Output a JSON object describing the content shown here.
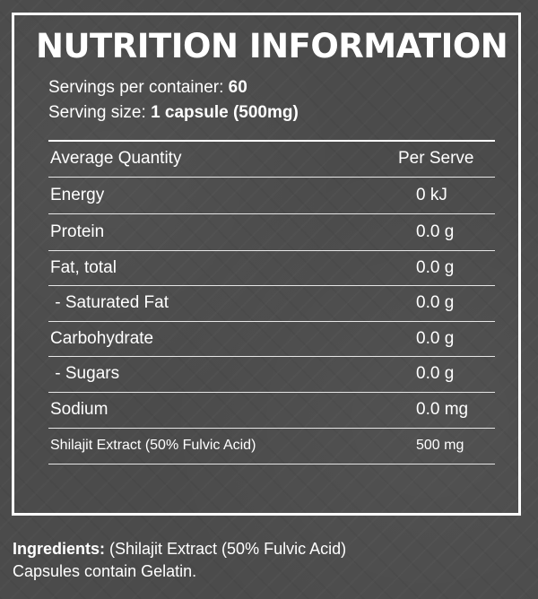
{
  "title": "NUTRITION INFORMATION",
  "servings": {
    "per_container_label": "Servings per container:",
    "per_container_value": "60",
    "size_label": "Serving size:",
    "size_value": "1 capsule (500mg)"
  },
  "table": {
    "header": {
      "name": "Average Quantity",
      "value": "Per Serve"
    },
    "rows": [
      {
        "name": "Energy",
        "value": "0 kJ"
      },
      {
        "name": "Protein",
        "value": "0.0 g"
      },
      {
        "name": "Fat, total",
        "value": "0.0 g"
      },
      {
        "name": " - Saturated Fat",
        "value": "0.0 g"
      },
      {
        "name": "Carbohydrate",
        "value": "0.0 g"
      },
      {
        "name": " - Sugars",
        "value": "0.0 g"
      },
      {
        "name": "Sodium",
        "value": "0.0 mg"
      },
      {
        "name": "Shilajit Extract (50% Fulvic Acid)",
        "value": "500 mg"
      }
    ]
  },
  "ingredients": {
    "label": "Ingredients:",
    "text": " (Shilajit Extract (50% Fulvic Acid)",
    "line2": "Capsules contain Gelatin."
  }
}
